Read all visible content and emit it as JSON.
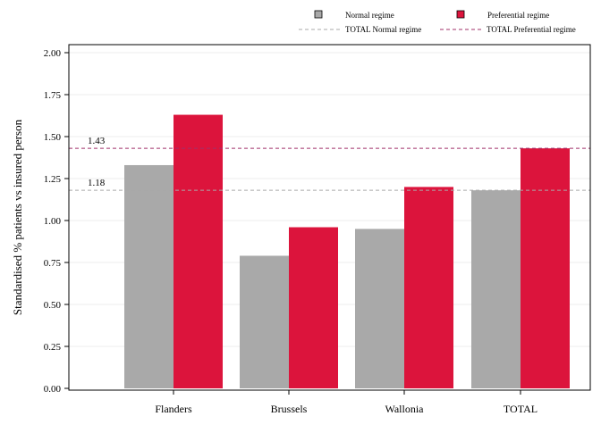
{
  "chart_data": {
    "type": "bar",
    "categories": [
      "Flanders",
      "Brussels",
      "Wallonia",
      "TOTAL"
    ],
    "series": [
      {
        "name": "Normal regime",
        "values": [
          1.33,
          0.79,
          0.95,
          1.18
        ],
        "color": "#a9a9a9"
      },
      {
        "name": "Preferential regime",
        "values": [
          1.63,
          0.96,
          1.2,
          1.43
        ],
        "color": "#dc143c"
      }
    ],
    "reference_lines": [
      {
        "name": "TOTAL Normal regime",
        "value": 1.18,
        "label": "1.18",
        "color": "#a9a9a9",
        "style": "dashed"
      },
      {
        "name": "TOTAL Preferential regime",
        "value": 1.43,
        "label": "1.43",
        "color": "#a0306a",
        "style": "dashed"
      }
    ],
    "ylabel": "Standardised % patients vs insured person",
    "xlabel": "",
    "ylim": [
      0,
      2
    ],
    "yticks": [
      "0.00",
      "0.25",
      "0.50",
      "0.75",
      "1.00",
      "1.25",
      "1.50",
      "1.75",
      "2.00"
    ],
    "grid": true,
    "legend_position": "top-right"
  }
}
